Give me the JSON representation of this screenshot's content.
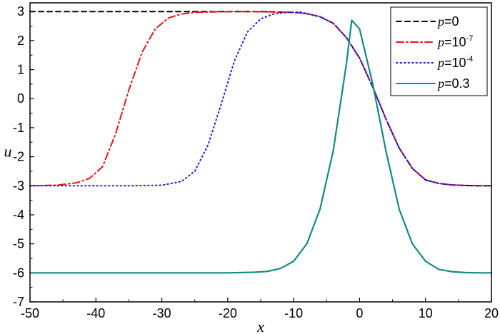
{
  "chart_data": {
    "type": "line",
    "xlabel": "x",
    "ylabel": "u",
    "xlim": [
      -50,
      20
    ],
    "ylim": [
      -7,
      3.3
    ],
    "x_ticks": [
      -50,
      -40,
      -30,
      -20,
      -10,
      0,
      10,
      20
    ],
    "y_ticks": [
      3,
      2,
      1,
      0,
      -1,
      -2,
      -3,
      -4,
      -5,
      -6,
      -7
    ],
    "x_tick_labels": [
      "-50",
      "-40",
      "-30",
      "-20",
      "-10",
      "0",
      "10",
      "20"
    ],
    "y_tick_labels": [
      "3",
      "2",
      "1",
      "0",
      "-1",
      "-2",
      "-3",
      "-4",
      "-5",
      "-6",
      "-7"
    ],
    "grid": false,
    "legend_position": "top-right",
    "series": [
      {
        "name": "p=0",
        "label_main": "p",
        "label_rest": "=0",
        "label_sup": "",
        "color": "#000000",
        "style": "dashed",
        "x": [
          -50,
          -45,
          -40,
          -35,
          -30,
          -25,
          -20,
          -15,
          -10,
          -8,
          -6,
          -4,
          -2,
          0,
          2,
          4,
          6,
          8,
          10,
          12,
          14,
          16,
          18,
          20
        ],
        "y": [
          3,
          3,
          3,
          3,
          3,
          3,
          3,
          3,
          2.97,
          2.93,
          2.82,
          2.6,
          2.1,
          1.4,
          0.4,
          -0.7,
          -1.7,
          -2.4,
          -2.8,
          -2.92,
          -2.97,
          -2.99,
          -3,
          -3
        ]
      },
      {
        "name": "p=10^-7",
        "label_main": "p",
        "label_rest": "=10",
        "label_sup": "-7",
        "color": "#e8141c",
        "style": "dashdot",
        "x": [
          -50,
          -46,
          -43,
          -41,
          -39,
          -37,
          -35,
          -33,
          -31,
          -29,
          -27,
          -25,
          -22,
          -18,
          -14,
          -10,
          -8,
          -6,
          -4,
          -2,
          0,
          2,
          4,
          6,
          8,
          10,
          12,
          14,
          16,
          18,
          20
        ],
        "y": [
          -3,
          -2.98,
          -2.9,
          -2.75,
          -2.35,
          -1.2,
          0.3,
          1.6,
          2.4,
          2.78,
          2.92,
          2.97,
          2.99,
          3,
          2.99,
          2.97,
          2.93,
          2.82,
          2.6,
          2.1,
          1.4,
          0.4,
          -0.7,
          -1.7,
          -2.4,
          -2.8,
          -2.92,
          -2.97,
          -2.99,
          -3,
          -3
        ]
      },
      {
        "name": "p=10^-4",
        "label_main": "p",
        "label_rest": "=10",
        "label_sup": "-4",
        "color": "#1c1ce8",
        "style": "dotted",
        "x": [
          -50,
          -45,
          -40,
          -35,
          -30,
          -27,
          -25,
          -23,
          -21,
          -19,
          -17,
          -15,
          -13,
          -11,
          -9,
          -8,
          -6,
          -4,
          -2,
          0,
          2,
          4,
          6,
          8,
          10,
          12,
          14,
          16,
          18,
          20
        ],
        "y": [
          -3,
          -3,
          -3,
          -3,
          -2.98,
          -2.85,
          -2.5,
          -1.6,
          -0.2,
          1.3,
          2.3,
          2.75,
          2.92,
          2.97,
          2.98,
          2.93,
          2.82,
          2.6,
          2.1,
          1.4,
          0.4,
          -0.7,
          -1.7,
          -2.4,
          -2.8,
          -2.92,
          -2.97,
          -2.99,
          -3,
          -3
        ]
      },
      {
        "name": "p=0.3",
        "label_main": "p",
        "label_rest": "=0.3",
        "label_sup": "",
        "color": "#138a86",
        "style": "solid",
        "x": [
          -50,
          -40,
          -30,
          -20,
          -16,
          -14,
          -12,
          -10,
          -8,
          -6,
          -4,
          -2,
          -1.2,
          0,
          2,
          4,
          6,
          8,
          10,
          12,
          14,
          16,
          18,
          20
        ],
        "y": [
          -6,
          -6,
          -6,
          -6,
          -5.98,
          -5.95,
          -5.85,
          -5.6,
          -5.0,
          -3.8,
          -1.8,
          1.2,
          2.7,
          2.4,
          0.5,
          -1.8,
          -3.8,
          -5.0,
          -5.6,
          -5.88,
          -5.96,
          -5.99,
          -6,
          -6
        ]
      }
    ]
  }
}
